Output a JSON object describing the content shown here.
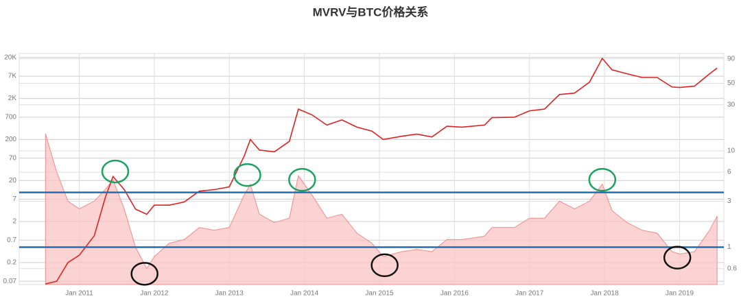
{
  "chart_data": {
    "type": "line",
    "title": "MVRV与BTC价格关系",
    "x": [
      2010.55,
      2010.7,
      2010.85,
      2011.0,
      2011.2,
      2011.35,
      2011.45,
      2011.6,
      2011.75,
      2011.9,
      2012.0,
      2012.2,
      2012.4,
      2012.6,
      2012.8,
      2013.0,
      2013.2,
      2013.28,
      2013.4,
      2013.6,
      2013.8,
      2013.92,
      2014.1,
      2014.3,
      2014.5,
      2014.7,
      2014.9,
      2015.05,
      2015.3,
      2015.5,
      2015.7,
      2015.9,
      2016.1,
      2016.4,
      2016.5,
      2016.8,
      2017.0,
      2017.2,
      2017.4,
      2017.6,
      2017.8,
      2017.97,
      2018.1,
      2018.3,
      2018.5,
      2018.7,
      2018.9,
      2019.0,
      2019.2,
      2019.4,
      2019.5
    ],
    "xlim": [
      2010.2,
      2019.59
    ],
    "xticks": [
      {
        "value": 2011,
        "label": "Jan 2011"
      },
      {
        "value": 2012,
        "label": "Jan 2012"
      },
      {
        "value": 2013,
        "label": "Jan 2013"
      },
      {
        "value": 2014,
        "label": "Jan 2014"
      },
      {
        "value": 2015,
        "label": "Jan 2015"
      },
      {
        "value": 2016,
        "label": "Jan 2016"
      },
      {
        "value": 2017,
        "label": "Jan 2017"
      },
      {
        "value": 2018,
        "label": "Jan 2018"
      },
      {
        "value": 2019,
        "label": "Jan 2019"
      }
    ],
    "ylim": [
      0.058,
      25000
    ],
    "log_y": true,
    "yticks": [
      {
        "value": 20000,
        "label": "20K"
      },
      {
        "value": 7000,
        "label": "7K"
      },
      {
        "value": 2000,
        "label": "2K"
      },
      700,
      200,
      70,
      20,
      7,
      2,
      0.7,
      0.2,
      0.07
    ],
    "y2lim": [
      0.41,
      102
    ],
    "y2ticks": [
      90,
      50,
      30,
      10,
      6,
      3,
      1,
      0.6
    ],
    "grid": true,
    "series": [
      {
        "name": "MVRV",
        "axis": "y2",
        "color": "#f08a8a",
        "fill": "#f9c4c4",
        "values": [
          15,
          6,
          3,
          2.5,
          3,
          4,
          5,
          2.5,
          1,
          0.6,
          0.8,
          1.1,
          1.2,
          1.6,
          1.5,
          1.6,
          3.5,
          4.5,
          2.2,
          1.8,
          2,
          5.5,
          3.5,
          2,
          2.2,
          1.4,
          1.1,
          0.8,
          0.9,
          0.95,
          0.9,
          1.2,
          1.2,
          1.3,
          1.6,
          1.6,
          2,
          2,
          3,
          2.5,
          3,
          4.5,
          2.4,
          1.8,
          1.5,
          1.4,
          0.9,
          0.85,
          0.9,
          1.5,
          2.1
        ]
      },
      {
        "name": "BTC",
        "color": "#e02020",
        "values": [
          0.06,
          0.07,
          0.2,
          0.3,
          0.9,
          8,
          25,
          12,
          4,
          3,
          5,
          5,
          6,
          11,
          12,
          14,
          80,
          200,
          110,
          100,
          180,
          1100,
          800,
          450,
          600,
          400,
          320,
          200,
          240,
          270,
          230,
          420,
          400,
          450,
          680,
          700,
          1000,
          1100,
          2500,
          2700,
          5000,
          19000,
          10000,
          8000,
          6500,
          6500,
          3800,
          3700,
          4000,
          8000,
          11000
        ]
      }
    ],
    "reference_lines": {
      "axis": "y2",
      "color": "#1f6fb5",
      "values": [
        3.7,
        1
      ]
    },
    "circles": [
      {
        "axis": "y2",
        "color": "#1aa260",
        "x": [
          2011.48,
          2013.24,
          2013.97,
          2017.97
        ],
        "y": [
          6.1,
          5.6,
          5.0,
          5.0
        ]
      },
      {
        "axis": "y2",
        "color": "#111111",
        "x": [
          2011.87,
          2015.07,
          2018.97
        ],
        "y": [
          0.53,
          0.65,
          0.78
        ]
      }
    ]
  }
}
